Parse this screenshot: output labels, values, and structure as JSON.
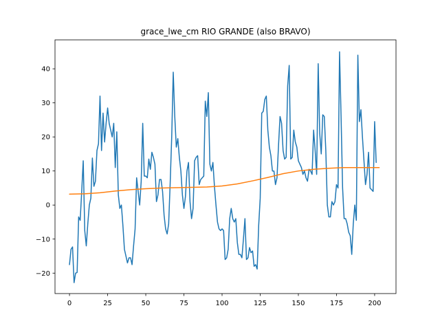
{
  "chart_data": {
    "type": "line",
    "title": "grace_lwe_cm RIO GRANDE (also BRAVO)",
    "xlabel": "",
    "ylabel": "",
    "xlim": [
      -9.5,
      214
    ],
    "ylim": [
      -26,
      48.5
    ],
    "xticks": [
      0,
      25,
      50,
      75,
      100,
      125,
      150,
      175,
      200
    ],
    "yticks": [
      -20,
      -10,
      0,
      10,
      20,
      30,
      40
    ],
    "grid": false,
    "legend": "none",
    "series": [
      {
        "color": "#1f77b4",
        "points": [
          [
            0,
            -17.5
          ],
          [
            1,
            -13
          ],
          [
            2,
            -12.3
          ],
          [
            3,
            -22.8
          ],
          [
            4,
            -20
          ],
          [
            5,
            -19.8
          ],
          [
            6,
            -3.5
          ],
          [
            7,
            -4.5
          ],
          [
            8,
            4
          ],
          [
            9,
            13
          ],
          [
            10,
            -7.5
          ],
          [
            11,
            -12
          ],
          [
            12,
            -5.5
          ],
          [
            13,
            0
          ],
          [
            14,
            2
          ],
          [
            15,
            13.8
          ],
          [
            16,
            5.5
          ],
          [
            17,
            7
          ],
          [
            18,
            16
          ],
          [
            19,
            18
          ],
          [
            20,
            32
          ],
          [
            21,
            16
          ],
          [
            22,
            27
          ],
          [
            23,
            18.5
          ],
          [
            24,
            24
          ],
          [
            25,
            28.5
          ],
          [
            26,
            24
          ],
          [
            27,
            22
          ],
          [
            28,
            20
          ],
          [
            29,
            24
          ],
          [
            30,
            11
          ],
          [
            31,
            21.5
          ],
          [
            32,
            3
          ],
          [
            33,
            -1
          ],
          [
            34,
            0
          ],
          [
            35,
            -6
          ],
          [
            36,
            -13
          ],
          [
            37,
            -15
          ],
          [
            38,
            -17
          ],
          [
            39,
            -15.5
          ],
          [
            40,
            -15.5
          ],
          [
            41,
            -17.5
          ],
          [
            42,
            -12
          ],
          [
            43,
            -7
          ],
          [
            44,
            8
          ],
          [
            45,
            4
          ],
          [
            46,
            0
          ],
          [
            47,
            7
          ],
          [
            48,
            24
          ],
          [
            49,
            8.5
          ],
          [
            50,
            8.5
          ],
          [
            51,
            8
          ],
          [
            52,
            13.5
          ],
          [
            53,
            10.5
          ],
          [
            54,
            15.5
          ],
          [
            55,
            14
          ],
          [
            56,
            12
          ],
          [
            57,
            1
          ],
          [
            58,
            3
          ],
          [
            59,
            7.5
          ],
          [
            60,
            7.5
          ],
          [
            61,
            4
          ],
          [
            62,
            -3
          ],
          [
            63,
            -7
          ],
          [
            64,
            -8.5
          ],
          [
            65,
            -5.5
          ],
          [
            66,
            6.5
          ],
          [
            67,
            20
          ],
          [
            68,
            39
          ],
          [
            69,
            26
          ],
          [
            70,
            17
          ],
          [
            71,
            19.5
          ],
          [
            72,
            14
          ],
          [
            73,
            10
          ],
          [
            74,
            3
          ],
          [
            75,
            -1
          ],
          [
            76,
            2.5
          ],
          [
            77,
            10
          ],
          [
            78,
            12.5
          ],
          [
            79,
            1
          ],
          [
            80,
            -4
          ],
          [
            81,
            -1
          ],
          [
            82,
            13
          ],
          [
            83,
            14
          ],
          [
            84,
            14.5
          ],
          [
            85,
            6
          ],
          [
            86,
            7.5
          ],
          [
            87,
            8
          ],
          [
            88,
            8.5
          ],
          [
            89,
            30.5
          ],
          [
            90,
            26
          ],
          [
            91,
            33
          ],
          [
            92,
            12
          ],
          [
            93,
            10
          ],
          [
            94,
            12.5
          ],
          [
            95,
            5.5
          ],
          [
            96,
            0
          ],
          [
            97,
            -5
          ],
          [
            98,
            -7
          ],
          [
            99,
            -7.5
          ],
          [
            100,
            -7
          ],
          [
            101,
            -7.5
          ],
          [
            102,
            -16
          ],
          [
            103,
            -15.5
          ],
          [
            104,
            -13
          ],
          [
            105,
            -4
          ],
          [
            106,
            -1
          ],
          [
            107,
            -4
          ],
          [
            108,
            -5
          ],
          [
            109,
            -4
          ],
          [
            110,
            -11
          ],
          [
            111,
            -14.5
          ],
          [
            112,
            -14.5
          ],
          [
            113,
            -15.5
          ],
          [
            114,
            -10
          ],
          [
            115,
            -4
          ],
          [
            116,
            -16
          ],
          [
            117,
            -15.5
          ],
          [
            118,
            -12.5
          ],
          [
            119,
            -14
          ],
          [
            120,
            -13.5
          ],
          [
            121,
            -18
          ],
          [
            122,
            -17.5
          ],
          [
            123,
            -18.8
          ],
          [
            124,
            -6
          ],
          [
            125,
            2
          ],
          [
            126,
            27
          ],
          [
            127,
            27.5
          ],
          [
            128,
            31
          ],
          [
            129,
            32
          ],
          [
            130,
            22
          ],
          [
            131,
            17
          ],
          [
            132,
            14.5
          ],
          [
            133,
            10
          ],
          [
            134,
            10
          ],
          [
            135,
            6
          ],
          [
            136,
            8
          ],
          [
            137,
            17.5
          ],
          [
            138,
            26
          ],
          [
            139,
            24
          ],
          [
            140,
            16
          ],
          [
            141,
            13.5
          ],
          [
            142,
            14
          ],
          [
            143,
            35
          ],
          [
            144,
            41
          ],
          [
            145,
            13.5
          ],
          [
            146,
            14
          ],
          [
            147,
            22
          ],
          [
            148,
            18.5
          ],
          [
            149,
            17
          ],
          [
            150,
            13
          ],
          [
            151,
            12
          ],
          [
            152,
            11
          ],
          [
            153,
            9
          ],
          [
            154,
            10
          ],
          [
            155,
            8
          ],
          [
            156,
            7
          ],
          [
            157,
            10.5
          ],
          [
            158,
            10
          ],
          [
            159,
            9
          ],
          [
            160,
            22
          ],
          [
            161,
            16
          ],
          [
            162,
            9
          ],
          [
            163,
            41.5
          ],
          [
            164,
            21
          ],
          [
            165,
            15
          ],
          [
            166,
            26.5
          ],
          [
            167,
            26
          ],
          [
            168,
            16
          ],
          [
            169,
            0
          ],
          [
            170,
            -3.5
          ],
          [
            171,
            -3.5
          ],
          [
            172,
            1
          ],
          [
            173,
            0
          ],
          [
            174,
            1
          ],
          [
            175,
            6
          ],
          [
            176,
            5
          ],
          [
            177,
            45
          ],
          [
            178,
            26
          ],
          [
            179,
            5
          ],
          [
            180,
            -4
          ],
          [
            181,
            -4
          ],
          [
            182,
            -5.5
          ],
          [
            183,
            -8
          ],
          [
            184,
            -9
          ],
          [
            185,
            -14.5
          ],
          [
            186,
            -5.5
          ],
          [
            187,
            0
          ],
          [
            188,
            -4.5
          ],
          [
            189,
            44
          ],
          [
            190,
            24.5
          ],
          [
            191,
            28
          ],
          [
            192,
            20
          ],
          [
            193,
            13
          ],
          [
            194,
            6
          ],
          [
            195,
            9
          ],
          [
            196,
            15.5
          ],
          [
            197,
            5
          ],
          [
            198,
            4.5
          ],
          [
            199,
            4
          ],
          [
            200,
            24.5
          ],
          [
            201,
            12.5
          ]
        ]
      },
      {
        "color": "#ff7f0e",
        "points": [
          [
            0,
            3.2
          ],
          [
            10,
            3.3
          ],
          [
            20,
            3.6
          ],
          [
            30,
            4.1
          ],
          [
            40,
            4.5
          ],
          [
            50,
            4.8
          ],
          [
            60,
            5
          ],
          [
            70,
            5.1
          ],
          [
            80,
            5.2
          ],
          [
            90,
            5.3
          ],
          [
            100,
            5.6
          ],
          [
            110,
            6.2
          ],
          [
            120,
            7.1
          ],
          [
            130,
            8.1
          ],
          [
            140,
            9.2
          ],
          [
            150,
            10
          ],
          [
            160,
            10.5
          ],
          [
            170,
            10.8
          ],
          [
            180,
            11
          ],
          [
            190,
            11
          ],
          [
            200,
            11
          ],
          [
            203,
            11
          ]
        ]
      }
    ]
  }
}
